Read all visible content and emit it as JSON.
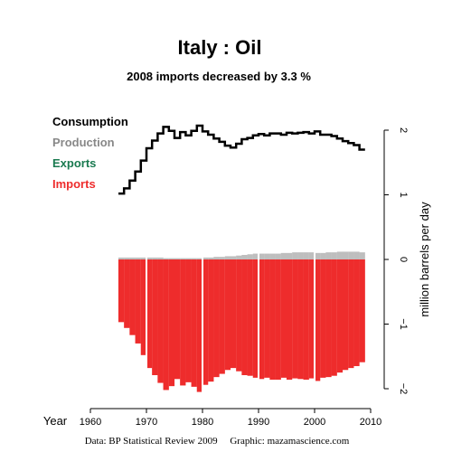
{
  "chart_data": {
    "type": "step-bar",
    "title": "Italy :  Oil",
    "subtitle": "2008 imports decreased by 3.3 %",
    "xlabel": "Year",
    "ylabel": "million barrels per day",
    "xlim": [
      1960,
      2010
    ],
    "ylim": [
      -2,
      2
    ],
    "x_ticks": [
      "1960",
      "1970",
      "1980",
      "1990",
      "2000",
      "2010"
    ],
    "y_ticks": [
      "2",
      "1",
      "0",
      "−1",
      "−2"
    ],
    "legend": [
      {
        "label": "Consumption",
        "color": "#000000"
      },
      {
        "label": "Production",
        "color": "#888888"
      },
      {
        "label": "Exports",
        "color": "#1a7a50"
      },
      {
        "label": "Imports",
        "color": "#ee2c2c"
      }
    ],
    "years": [
      1965,
      1966,
      1967,
      1968,
      1969,
      1970,
      1971,
      1972,
      1973,
      1974,
      1975,
      1976,
      1977,
      1978,
      1979,
      1980,
      1981,
      1982,
      1983,
      1984,
      1985,
      1986,
      1987,
      1988,
      1989,
      1990,
      1991,
      1992,
      1993,
      1994,
      1995,
      1996,
      1997,
      1998,
      1999,
      2000,
      2001,
      2002,
      2003,
      2004,
      2005,
      2006,
      2007,
      2008
    ],
    "series": [
      {
        "name": "Consumption",
        "values": [
          1.02,
          1.1,
          1.22,
          1.36,
          1.53,
          1.72,
          1.84,
          1.95,
          2.05,
          1.99,
          1.88,
          1.97,
          1.92,
          1.99,
          2.07,
          1.98,
          1.93,
          1.87,
          1.82,
          1.76,
          1.73,
          1.79,
          1.86,
          1.88,
          1.92,
          1.94,
          1.92,
          1.95,
          1.95,
          1.93,
          1.96,
          1.95,
          1.96,
          1.97,
          1.95,
          1.98,
          1.93,
          1.93,
          1.91,
          1.87,
          1.83,
          1.8,
          1.77,
          1.7
        ]
      },
      {
        "name": "Production",
        "values": [
          0.03,
          0.03,
          0.03,
          0.03,
          0.03,
          0.03,
          0.03,
          0.03,
          0.02,
          0.02,
          0.02,
          0.02,
          0.02,
          0.02,
          0.02,
          0.03,
          0.03,
          0.04,
          0.04,
          0.05,
          0.05,
          0.06,
          0.07,
          0.08,
          0.09,
          0.09,
          0.09,
          0.09,
          0.09,
          0.1,
          0.1,
          0.11,
          0.11,
          0.11,
          0.11,
          0.1,
          0.1,
          0.11,
          0.11,
          0.12,
          0.12,
          0.12,
          0.12,
          0.11
        ]
      },
      {
        "name": "Exports",
        "values": []
      },
      {
        "name": "Imports",
        "values": [
          -0.97,
          -1.06,
          -1.17,
          -1.3,
          -1.48,
          -1.68,
          -1.79,
          -1.91,
          -2.02,
          -1.96,
          -1.85,
          -1.95,
          -1.9,
          -1.97,
          -2.05,
          -1.94,
          -1.89,
          -1.82,
          -1.77,
          -1.71,
          -1.68,
          -1.73,
          -1.79,
          -1.8,
          -1.83,
          -1.85,
          -1.83,
          -1.86,
          -1.86,
          -1.83,
          -1.86,
          -1.84,
          -1.85,
          -1.86,
          -1.84,
          -1.88,
          -1.83,
          -1.82,
          -1.8,
          -1.75,
          -1.71,
          -1.68,
          -1.65,
          -1.59
        ]
      }
    ],
    "credits": "Data: BP Statistical Review 2009     Graphic: mazamascience.com"
  }
}
